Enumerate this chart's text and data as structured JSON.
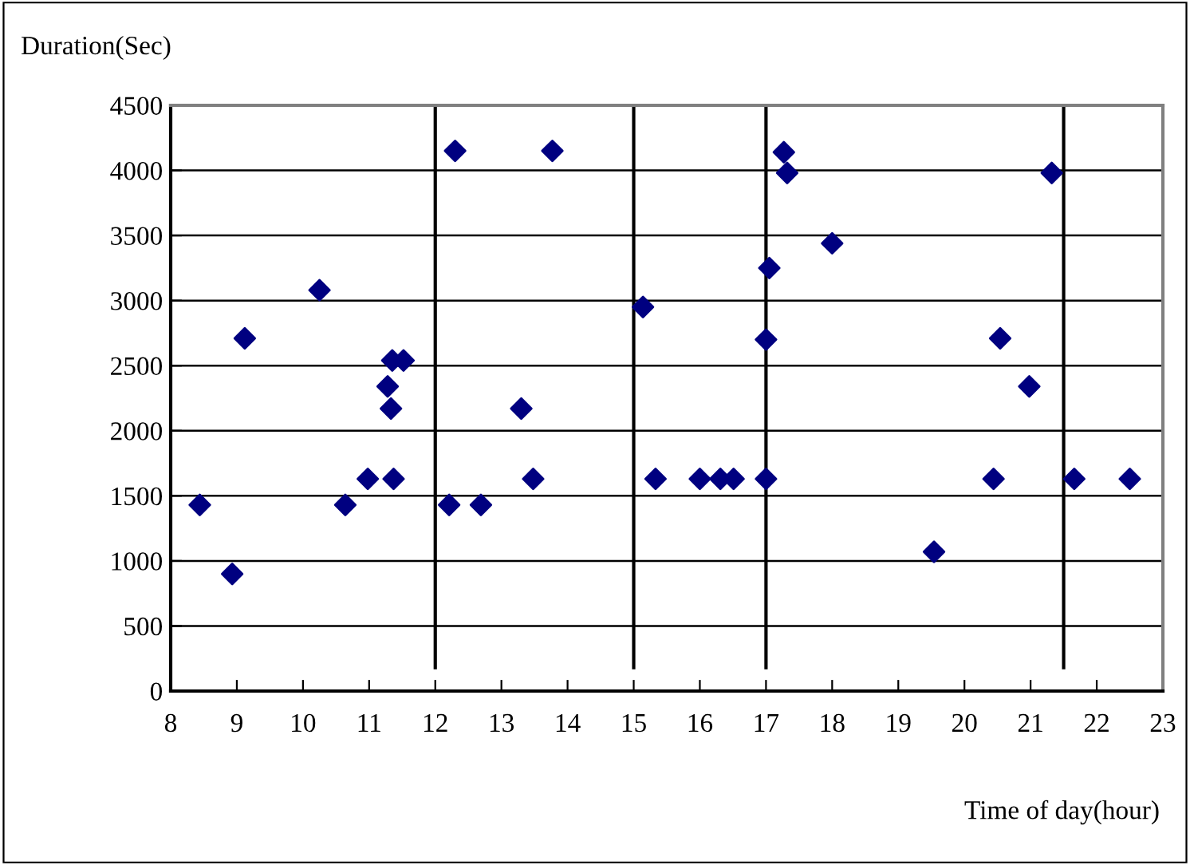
{
  "chart_data": {
    "type": "scatter",
    "xlabel": "Time of day(hour)",
    "ylabel": "Duration(Sec)",
    "series": [
      {
        "color": "#000080",
        "x": [
          8.44,
          8.93,
          9.12,
          10.25,
          10.64,
          10.98,
          11.28,
          11.33,
          11.35,
          11.37,
          11.52,
          12.21,
          12.3,
          12.69,
          13.3,
          13.48,
          13.77,
          15.14,
          15.33,
          16.0,
          16.31,
          16.51,
          17.0,
          17.0,
          17.05,
          17.27,
          17.32,
          18.0,
          19.54,
          20.44,
          20.54,
          20.98,
          21.32,
          21.66,
          22.5
        ],
        "values": [
          1430,
          900,
          2710,
          3080,
          1430,
          1630,
          2340,
          2170,
          2540,
          1630,
          2540,
          1430,
          4150,
          1430,
          2170,
          1630,
          4150,
          2950,
          1630,
          1630,
          1630,
          1630,
          1630,
          2700,
          3250,
          4140,
          3980,
          3440,
          1070,
          1630,
          2710,
          2340,
          3980,
          1630,
          1630
        ]
      }
    ],
    "xlim": [
      8,
      23
    ],
    "xticks": [
      8,
      9,
      10,
      11,
      12,
      13,
      14,
      15,
      16,
      17,
      18,
      19,
      20,
      21,
      22,
      23
    ],
    "ylim": [
      0,
      4500
    ],
    "yticks": [
      0,
      500,
      1000,
      1500,
      2000,
      2500,
      3000,
      3500,
      4000,
      4500
    ],
    "grid": "y",
    "marker": "diamond",
    "legend": false,
    "ref_lines": [
      {
        "axis": "x",
        "value": 12,
        "color": "#000000"
      },
      {
        "axis": "x",
        "value": 15,
        "color": "#000000"
      },
      {
        "axis": "x",
        "value": 17,
        "color": "#000000"
      },
      {
        "axis": "x",
        "value": 21.5,
        "color": "#000000"
      }
    ]
  }
}
